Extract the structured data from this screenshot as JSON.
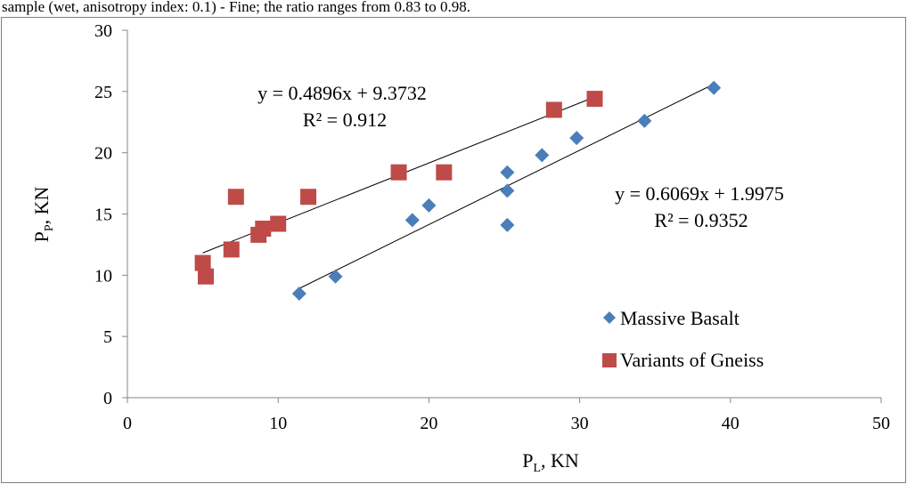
{
  "header_fragment": "sample (wet, anisotropy index: 0.1) - Fine; the ratio ranges from 0.83 to 0.98.",
  "chart_data": {
    "type": "scatter",
    "xlabel": {
      "main": "P",
      "sub": "L",
      "rest": ", KN"
    },
    "ylabel": {
      "main": "P",
      "sub": "P",
      "rest": ", KN"
    },
    "xlim": [
      0,
      50
    ],
    "ylim": [
      0,
      30
    ],
    "x_ticks": [
      "0",
      "10",
      "20",
      "30",
      "40",
      "50"
    ],
    "y_ticks": [
      "0",
      "5",
      "10",
      "15",
      "20",
      "25",
      "30"
    ],
    "grid": false,
    "legend_position": "right",
    "series": [
      {
        "name": "Massive Basalt",
        "marker": "diamond",
        "color": "#4a7ebb",
        "points": [
          [
            11.4,
            8.5
          ],
          [
            13.8,
            9.9
          ],
          [
            18.9,
            14.5
          ],
          [
            20.0,
            15.7
          ],
          [
            25.2,
            14.1
          ],
          [
            25.2,
            16.9
          ],
          [
            25.2,
            18.4
          ],
          [
            27.5,
            19.8
          ],
          [
            29.8,
            21.2
          ],
          [
            34.3,
            22.6
          ],
          [
            38.9,
            25.3
          ]
        ],
        "trendline": {
          "slope": 0.6069,
          "intercept": 1.9975,
          "x_range": [
            11.4,
            38.9
          ],
          "equation": "y = 0.6069x + 1.9975",
          "r2_label": "R² = 0.9352"
        }
      },
      {
        "name": "Variants of Gneiss",
        "marker": "square",
        "color": "#be4b48",
        "points": [
          [
            5.0,
            11.0
          ],
          [
            5.2,
            9.9
          ],
          [
            6.9,
            12.1
          ],
          [
            7.2,
            16.4
          ],
          [
            8.7,
            13.3
          ],
          [
            9.0,
            13.8
          ],
          [
            10.0,
            14.2
          ],
          [
            12.0,
            16.4
          ],
          [
            18.0,
            18.4
          ],
          [
            21.0,
            18.4
          ],
          [
            28.3,
            23.5
          ],
          [
            31.0,
            24.4
          ]
        ],
        "trendline": {
          "slope": 0.4896,
          "intercept": 9.3732,
          "x_range": [
            5.0,
            31.0
          ],
          "equation": "y = 0.4896x + 9.3732",
          "r2_label": "R² = 0.912"
        }
      }
    ]
  }
}
